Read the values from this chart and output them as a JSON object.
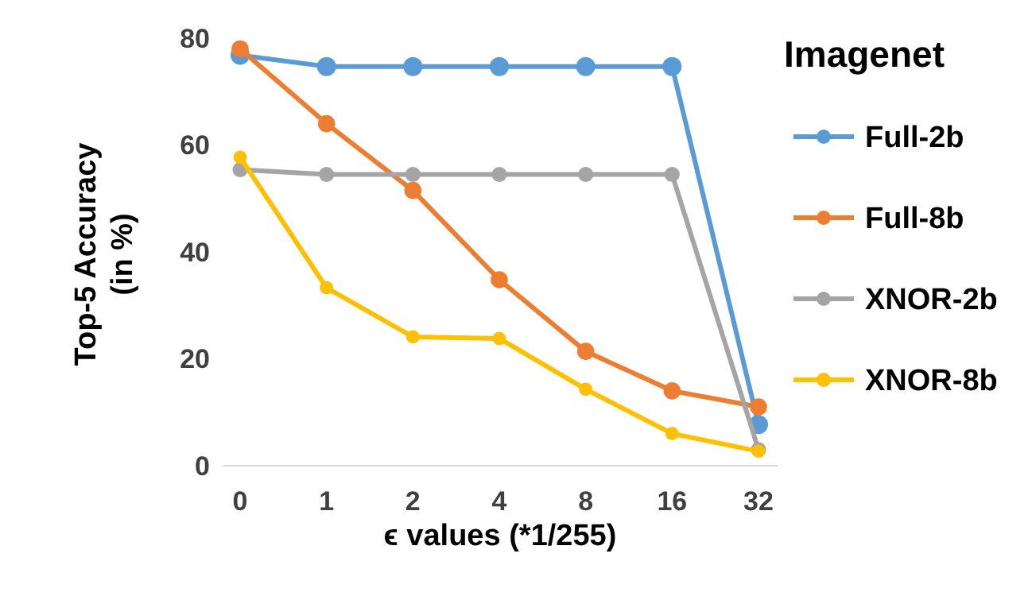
{
  "chart_data": {
    "type": "line",
    "xlabel": "ϵ values (*1/255)",
    "ylabel": "Top-5 Accuracy (in %)",
    "legend_title": "Imagenet",
    "legend": "right",
    "marker": "circle",
    "categories": [
      "0",
      "1",
      "2",
      "4",
      "8",
      "16",
      "32"
    ],
    "ylim": [
      0,
      80
    ],
    "yticks": [
      0,
      20,
      40,
      60,
      80
    ],
    "series": [
      {
        "name": "Full-2b",
        "color": "#5b9bd5",
        "values": [
          76.8,
          74.7,
          74.7,
          74.7,
          74.7,
          74.7,
          7.7
        ]
      },
      {
        "name": "Full-8b",
        "color": "#ed7d31",
        "values": [
          78,
          64,
          51.5,
          34.8,
          21.4,
          14,
          11
        ]
      },
      {
        "name": "XNOR-2b",
        "color": "#a5a5a5",
        "values": [
          55.4,
          54.5,
          54.5,
          54.5,
          54.5,
          54.5,
          3
        ]
      },
      {
        "name": "XNOR-8b",
        "color": "#ffc000",
        "values": [
          57.7,
          33.3,
          24.1,
          23.8,
          14.3,
          6,
          2.7
        ]
      }
    ]
  }
}
